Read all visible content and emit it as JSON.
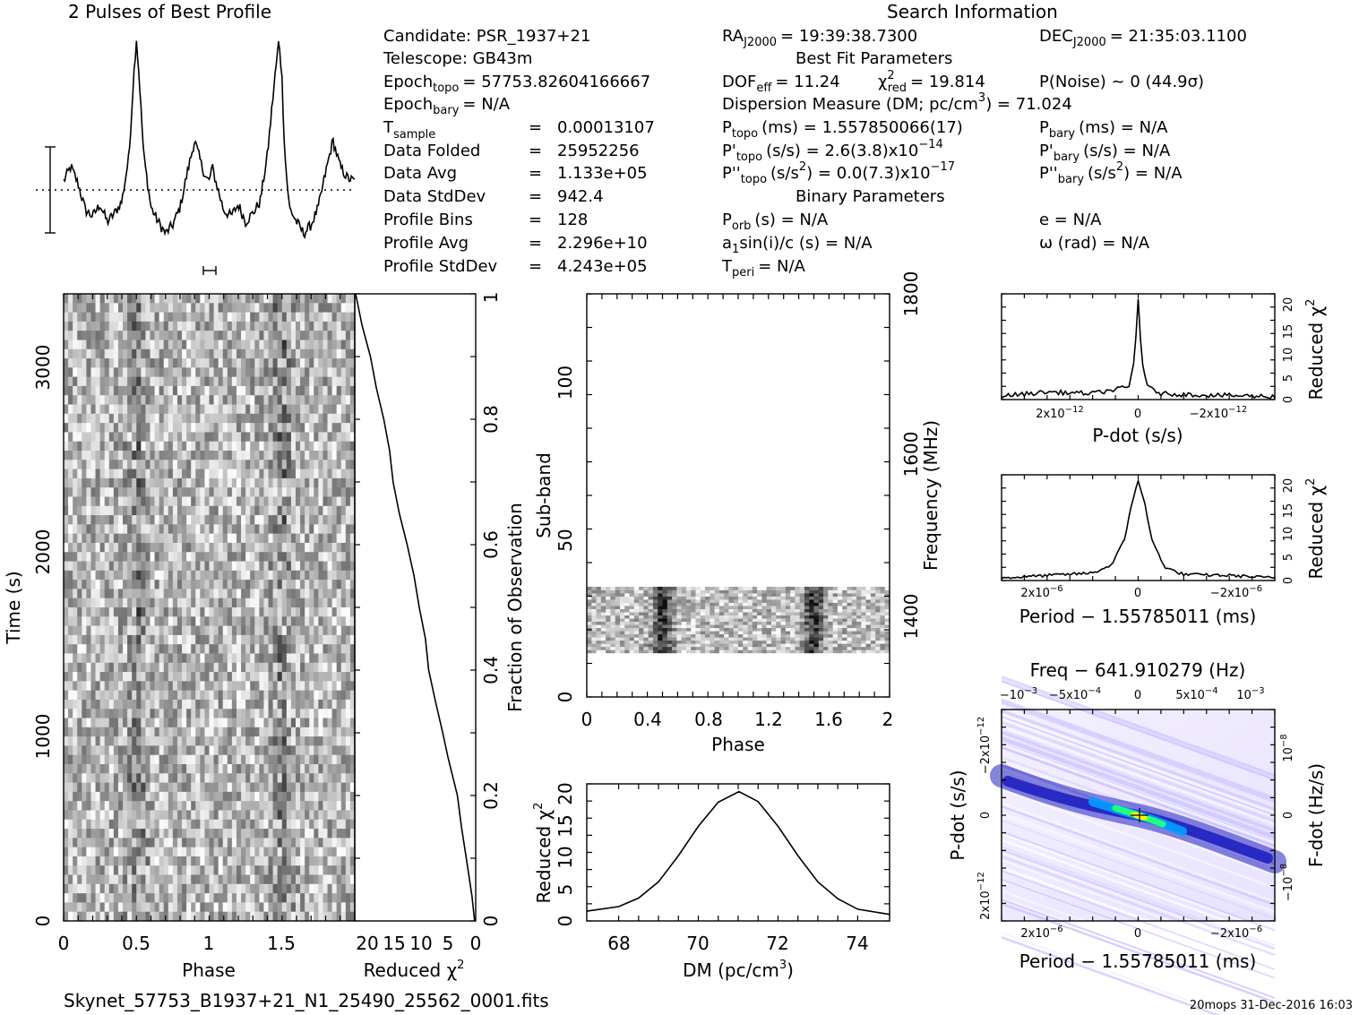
{
  "window": {
    "profile_title": "2 Pulses of Best Profile",
    "search_title": "Search Information",
    "filename": "Skynet_57753_B1937+21_N1_25490_25562_0001.fits",
    "stamp": "20mops 31-Dec-2016 16:03"
  },
  "candidate_info": {
    "candidate": "Candidate:  PSR_1937+21",
    "telescope": "Telescope:  GB43m",
    "epoch_topo_label": "Epoch",
    "epoch_topo_sub": "topo",
    "epoch_topo_value": "= 57753.82604166667",
    "epoch_bary_label": "Epoch",
    "epoch_bary_sub": "bary",
    "epoch_bary_value": "= N/A",
    "tsample_label": "T",
    "tsample_sub": "sample",
    "tsample_value": "0.00013107",
    "data_folded_label": "Data Folded",
    "data_folded_value": "25952256",
    "data_avg_label": "Data Avg",
    "data_avg_value": "1.133e+05",
    "data_stddev_label": "Data StdDev",
    "data_stddev_value": "942.4",
    "profile_bins_label": "Profile Bins",
    "profile_bins_value": "128",
    "profile_avg_label": "Profile Avg",
    "profile_avg_value": "2.296e+10",
    "profile_stddev_label": "Profile StdDev",
    "profile_stddev_value": "4.243e+05",
    "equals": "="
  },
  "search_info": {
    "ra_label": "RA",
    "ra_sub": "J2000",
    "ra_value": "= 19:39:38.7300",
    "dec_label": "DEC",
    "dec_sub": "J2000",
    "dec_value": "= 21:35:03.1100",
    "best_fit_header": "Best Fit Parameters",
    "dof_label": "DOF",
    "dof_sub": "eff",
    "dof_value": "= 11.24",
    "chi_label": "χ",
    "chi_sup": "2",
    "chi_sub": "red",
    "chi_value": "= 19.814",
    "pnoise": "P(Noise) ~ 0   (44.9σ)",
    "dm_line": "Dispersion Measure (DM; pc/cm",
    "dm_sup": "3",
    "dm_value": ") = 71.024",
    "ptopo_label": "P",
    "ptopo_sub": "topo",
    "ptopo_value": "(ms) =  1.557850066(17)",
    "pbary_label": "P",
    "pbary_sub": "bary",
    "pbary_value": "(ms) = N/A",
    "pdtopo_label": "P'",
    "pdtopo_sub": "topo",
    "pdtopo_value": "(s/s) =  2.6(3.8)x10",
    "pdtopo_exp": "−14",
    "pdbary_label": "P'",
    "pdbary_sub": "bary",
    "pdbary_value": "(s/s) = N/A",
    "pddtopo_label": "P''",
    "pddtopo_sub": "topo",
    "pddtopo_value_a": "(s/s",
    "pddtopo_value_sup": "2",
    "pddtopo_value_b": ") = 0.0(7.3)x10",
    "pddtopo_exp": "−17",
    "pddbary_label": "P''",
    "pddbary_sub": "bary",
    "pddbary_value_a": "(s/s",
    "pddbary_value_sup": "2",
    "pddbary_value_b": ") = N/A",
    "binary_header": "Binary Parameters",
    "porb_label": "P",
    "porb_sub": "orb",
    "porb_value": "(s) = N/A",
    "e_value": "e = N/A",
    "a1_label": "a",
    "a1_sub": "1",
    "a1_value": "sin(i)/c (s) = N/A",
    "omega_value": "ω (rad) = N/A",
    "tperi_label": "T",
    "tperi_sub": "peri",
    "tperi_value": "= N/A"
  },
  "chart_data": [
    {
      "type": "line",
      "title": "2 Pulses of Best Profile",
      "x": [
        0,
        0.05,
        0.1,
        0.15,
        0.2,
        0.25,
        0.3,
        0.35,
        0.4,
        0.45,
        0.48,
        0.5,
        0.52,
        0.55,
        0.6,
        0.65,
        0.7,
        0.75,
        0.8,
        0.85,
        0.9,
        0.95,
        0.98,
        1.0,
        1.02,
        1.05,
        1.1,
        1.15,
        1.2,
        1.25,
        1.3,
        1.35,
        1.4,
        1.45,
        1.48,
        1.5,
        1.52,
        1.55,
        1.6,
        1.65,
        1.7,
        1.75,
        1.8,
        1.85,
        1.9,
        1.95,
        2.0
      ],
      "values": [
        0.15,
        0.4,
        0.1,
        -0.35,
        -0.45,
        -0.25,
        -0.55,
        -0.4,
        -0.2,
        0.6,
        1.9,
        2.6,
        1.9,
        0.6,
        -0.3,
        -0.55,
        -0.75,
        -0.6,
        -0.3,
        0.3,
        0.85,
        0.4,
        0.2,
        0.15,
        0.4,
        0.1,
        -0.35,
        -0.45,
        -0.25,
        -0.55,
        -0.4,
        -0.2,
        0.6,
        1.9,
        2.6,
        1.9,
        0.6,
        -0.3,
        -0.55,
        -0.75,
        -0.6,
        -0.3,
        0.3,
        0.85,
        0.4,
        0.2,
        0.15
      ]
    },
    {
      "type": "heatmap",
      "xlabel": "Phase",
      "ylabel": "Time (s)",
      "xticks": [
        "0",
        "0.5",
        "1",
        "1.5"
      ],
      "yticks": [
        "0",
        "1000",
        "2000",
        "3000"
      ],
      "xlim": [
        0,
        2
      ],
      "ylim": [
        0,
        3400
      ],
      "pulse_phases": [
        0.5,
        1.5
      ]
    },
    {
      "type": "line",
      "xlabel": "Reduced χ2",
      "ylabel": "Fraction of Observation",
      "xticks": [
        "20",
        "15",
        "10",
        "5",
        "0"
      ],
      "yticks": [
        "0",
        "0.2",
        "0.4",
        "0.6",
        "0.8",
        "1"
      ],
      "x": [
        0,
        1,
        2,
        3,
        4,
        5,
        6,
        7,
        8,
        9,
        10,
        11,
        12,
        13,
        14,
        15,
        16,
        17,
        18,
        19,
        20
      ],
      "fraction": [
        0,
        0.04,
        0.1,
        0.15,
        0.2,
        0.26,
        0.3,
        0.35,
        0.4,
        0.45,
        0.5,
        0.55,
        0.6,
        0.65,
        0.7,
        0.75,
        0.8,
        0.85,
        0.9,
        0.95,
        1.0
      ],
      "chi2": [
        0,
        0.8,
        1.5,
        2.4,
        3.2,
        4.5,
        5.6,
        6.7,
        7.6,
        8.5,
        9.4,
        10.3,
        11.3,
        12.5,
        13.5,
        14.3,
        15.2,
        16.3,
        17.4,
        18.6,
        19.8
      ]
    },
    {
      "type": "heatmap",
      "xlabel": "Phase",
      "ylabel": "Sub-band",
      "y2label": "Frequency (MHz)",
      "xticks": [
        "0",
        "0.4",
        "0.8",
        "1.2",
        "1.6",
        "2"
      ],
      "yticks": [
        "0",
        "50",
        "100"
      ],
      "y2ticks": [
        "1400",
        "1600",
        "1800"
      ],
      "xlim": [
        0,
        2
      ],
      "ylim": [
        0,
        128
      ],
      "active_subbands": [
        14,
        35
      ]
    },
    {
      "type": "line",
      "xlabel": "DM (pc/cm3)",
      "ylabel": "Reduced χ2",
      "xticks": [
        "68",
        "70",
        "72",
        "74"
      ],
      "yticks": [
        "0",
        "5",
        "10",
        "15",
        "20"
      ],
      "x": [
        67.2,
        68,
        68.5,
        69,
        69.5,
        70,
        70.5,
        71.02,
        71.5,
        72,
        72.5,
        73,
        73.5,
        74,
        74.8
      ],
      "values": [
        1.5,
        2.2,
        3.5,
        6.0,
        10.0,
        14.5,
        18.2,
        19.8,
        18.3,
        14.5,
        10.0,
        6.0,
        3.4,
        1.8,
        1.0
      ]
    },
    {
      "type": "line",
      "xlabel": "P-dot (s/s)",
      "ylabel": "Reduced χ2",
      "xticks": [
        "2x10-12",
        "0",
        "-2x10-12"
      ],
      "yticks": [
        "0",
        "5",
        "10",
        "15",
        "20"
      ],
      "x": [
        3.0,
        2.0,
        1.0,
        0.5,
        0.2,
        0.08,
        0.0,
        -0.08,
        -0.2,
        -0.5,
        -1.0,
        -2.0,
        -3.0
      ],
      "values": [
        0.7,
        1.5,
        1.2,
        2.0,
        2.5,
        8.0,
        20.0,
        8.0,
        2.5,
        1.2,
        1.0,
        0.8,
        0.6
      ]
    },
    {
      "type": "line",
      "xlabel": "Period − 1.55785011 (ms)",
      "ylabel": "Reduced χ2",
      "xticks": [
        "2x10-6",
        "0",
        "-2x10-6"
      ],
      "yticks": [
        "0",
        "5",
        "10",
        "15",
        "20"
      ],
      "x": [
        3.0,
        2.0,
        1.0,
        0.6,
        0.3,
        0.15,
        0.0,
        -0.15,
        -0.3,
        -0.6,
        -1.0,
        -2.0,
        -3.0
      ],
      "values": [
        0.5,
        1.0,
        1.5,
        3.0,
        8.0,
        15.0,
        20.0,
        15.0,
        8.0,
        2.5,
        1.2,
        1.0,
        0.5
      ]
    },
    {
      "type": "heatmap",
      "title": "Freq − 641.910279 (Hz)",
      "xlabel": "Period − 1.55785011 (ms)",
      "ylabel": "P-dot (s/s)",
      "y2label": "F-dot (Hz/s)",
      "xticks": [
        "2x10-6",
        "0",
        "-2x10-6"
      ],
      "x2ticks": [
        "-10-3",
        "-5x10-4",
        "0",
        "5x10-4",
        "10-3"
      ],
      "yticks": [
        "2x10-12",
        "0",
        "-2x10-12"
      ],
      "y2ticks": [
        "-10-8",
        "0",
        "10-8"
      ],
      "colors": [
        "#ffffff",
        "#c8c0ff",
        "#2020c0",
        "#00a0ff",
        "#20ff80",
        "#ffff00"
      ]
    }
  ]
}
